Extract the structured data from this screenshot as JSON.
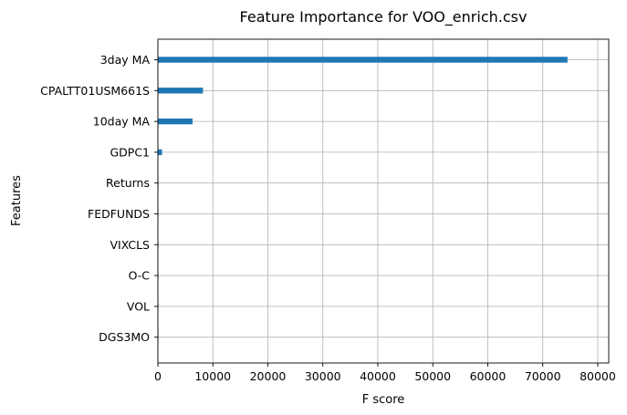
{
  "chart_data": {
    "type": "bar",
    "orientation": "horizontal",
    "title": "Feature Importance for VOO_enrich.csv",
    "xlabel": "F score",
    "ylabel": "Features",
    "categories": [
      "3day MA",
      "CPALTT01USM661S",
      "10day MA",
      "GDPC1",
      "Returns",
      "FEDFUNDS",
      "VIXCLS",
      "O-C",
      "VOL",
      "DGS3MO"
    ],
    "values": [
      74500,
      8200,
      6300,
      750,
      60,
      40,
      30,
      20,
      10,
      5
    ],
    "xlim": [
      0,
      82000
    ],
    "xticks": [
      0,
      10000,
      20000,
      30000,
      40000,
      50000,
      60000,
      70000,
      80000
    ],
    "grid": true,
    "bar_color": "#1f77b4"
  }
}
